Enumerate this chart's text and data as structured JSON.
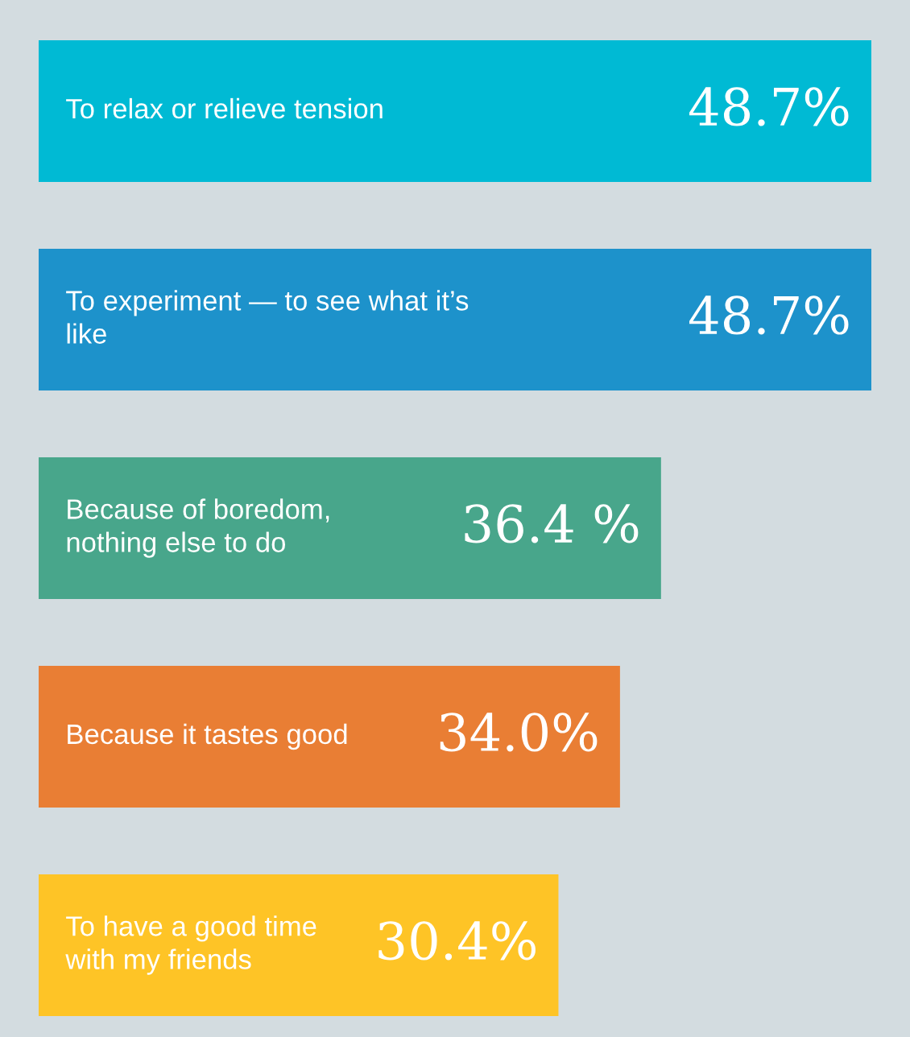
{
  "chart_data": {
    "type": "bar",
    "orientation": "horizontal",
    "categories": [
      "To relax or relieve tension",
      "To experiment — to see what it’s\nlike",
      "Because of boredom,\nnothing else to do",
      "Because it tastes good",
      "To have a good time\nwith my friends"
    ],
    "values": [
      48.7,
      48.7,
      36.4,
      34.0,
      30.4
    ],
    "colors": [
      "#00bad4",
      "#1d92cb",
      "#48a68b",
      "#e97e34",
      "#fec426"
    ],
    "value_labels": [
      "48.7%",
      "48.7%",
      "36.4 %",
      "34.0%",
      "30.4%"
    ]
  }
}
